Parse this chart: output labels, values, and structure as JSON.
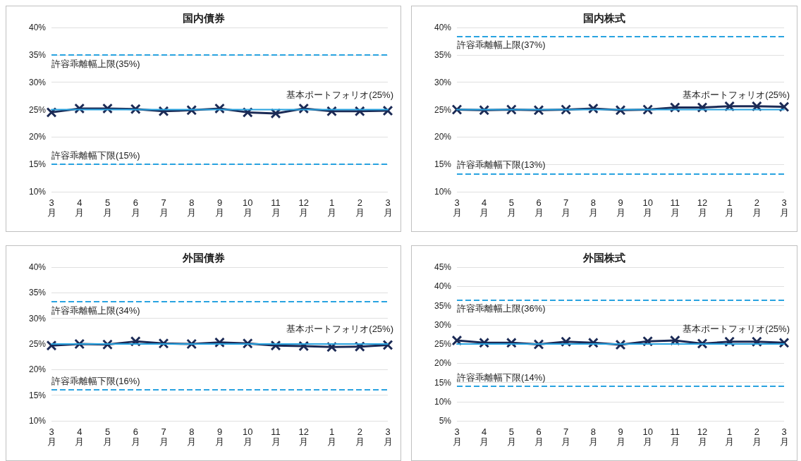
{
  "chart_data": [
    {
      "type": "line",
      "title": "国内債券",
      "categories": [
        "3月",
        "4月",
        "5月",
        "6月",
        "7月",
        "8月",
        "9月",
        "10月",
        "11月",
        "12月",
        "1月",
        "2月",
        "3月"
      ],
      "grid": "y",
      "ylim": [
        10,
        40
      ],
      "yticks": [
        {
          "value": 10,
          "label": "10%"
        },
        {
          "value": 15,
          "label": "15%"
        },
        {
          "value": 20,
          "label": "20%"
        },
        {
          "value": 25,
          "label": "25%"
        },
        {
          "value": 30,
          "label": "30%"
        },
        {
          "value": 35,
          "label": "35%"
        },
        {
          "value": 40,
          "label": "40%"
        }
      ],
      "series": [
        {
          "name": "基本ポートフォリオ(25%)",
          "color": "#29a3e0",
          "marker": "none",
          "values": [
            25,
            25,
            25,
            25,
            25,
            25,
            25,
            25,
            25,
            25,
            25,
            25,
            25
          ]
        },
        {
          "color": "#1b2a55",
          "marker": "cross",
          "values": [
            24.5,
            25.2,
            25.2,
            25.1,
            24.7,
            24.9,
            25.2,
            24.5,
            24.3,
            25.2,
            24.7,
            24.7,
            24.8
          ]
        }
      ],
      "ref_lines": [
        {
          "axis": "y",
          "value": 35,
          "label": "許容乖離幅上限(35%)",
          "color": "#29a3e0",
          "line_style": "dashed"
        },
        {
          "axis": "y",
          "value": 15,
          "label": "許容乖離幅下限(15%)",
          "color": "#29a3e0",
          "line_style": "dashed"
        }
      ]
    },
    {
      "type": "line",
      "title": "国内株式",
      "categories": [
        "3月",
        "4月",
        "5月",
        "6月",
        "7月",
        "8月",
        "9月",
        "10月",
        "11月",
        "12月",
        "1月",
        "2月",
        "3月"
      ],
      "grid": "y",
      "ylim": [
        10,
        40
      ],
      "yticks": [
        {
          "value": 10,
          "label": "10%"
        },
        {
          "value": 15,
          "label": "15%"
        },
        {
          "value": 20,
          "label": "20%"
        },
        {
          "value": 25,
          "label": "25%"
        },
        {
          "value": 30,
          "label": "30%"
        },
        {
          "value": 35,
          "label": "35%"
        },
        {
          "value": 40,
          "label": "40%"
        }
      ],
      "series": [
        {
          "name": "基本ポートフォリオ(25%)",
          "color": "#29a3e0",
          "marker": "none",
          "values": [
            25,
            25,
            25,
            25,
            25,
            25,
            25,
            25,
            25,
            25,
            25,
            25,
            25
          ]
        },
        {
          "color": "#1b2a55",
          "marker": "cross",
          "values": [
            25,
            24.9,
            25,
            24.9,
            25,
            25.2,
            24.9,
            25,
            25.4,
            25.4,
            25.6,
            25.6,
            25.5
          ]
        }
      ],
      "ref_lines": [
        {
          "axis": "y",
          "value": 38.4,
          "label": "許容乖離幅上限(37%)",
          "color": "#29a3e0",
          "line_style": "dashed"
        },
        {
          "axis": "y",
          "value": 13.3,
          "label": "許容乖離幅下限(13%)",
          "color": "#29a3e0",
          "line_style": "dashed"
        }
      ]
    },
    {
      "type": "line",
      "title": "外国債券",
      "categories": [
        "3月",
        "4月",
        "5月",
        "6月",
        "7月",
        "8月",
        "9月",
        "10月",
        "11月",
        "12月",
        "1月",
        "2月",
        "3月"
      ],
      "grid": "y",
      "ylim": [
        10,
        40
      ],
      "yticks": [
        {
          "value": 10,
          "label": "10%"
        },
        {
          "value": 15,
          "label": "15%"
        },
        {
          "value": 20,
          "label": "20%"
        },
        {
          "value": 25,
          "label": "25%"
        },
        {
          "value": 30,
          "label": "30%"
        },
        {
          "value": 35,
          "label": "35%"
        },
        {
          "value": 40,
          "label": "40%"
        }
      ],
      "series": [
        {
          "name": "基本ポートフォリオ(25%)",
          "color": "#29a3e0",
          "marker": "none",
          "values": [
            25,
            25,
            25,
            25,
            25,
            25,
            25,
            25,
            25,
            25,
            25,
            25,
            25
          ]
        },
        {
          "color": "#1b2a55",
          "marker": "cross",
          "values": [
            24.7,
            25,
            24.9,
            25.5,
            25.1,
            25,
            25.3,
            25.1,
            24.7,
            24.6,
            24.4,
            24.5,
            24.8
          ]
        }
      ],
      "ref_lines": [
        {
          "axis": "y",
          "value": 33.3,
          "label": "許容乖離幅上限(34%)",
          "color": "#29a3e0",
          "line_style": "dashed"
        },
        {
          "axis": "y",
          "value": 16.1,
          "label": "許容乖離幅下限(16%)",
          "color": "#29a3e0",
          "line_style": "dashed"
        }
      ]
    },
    {
      "type": "line",
      "title": "外国株式",
      "categories": [
        "3月",
        "4月",
        "5月",
        "6月",
        "7月",
        "8月",
        "9月",
        "10月",
        "11月",
        "12月",
        "1月",
        "2月",
        "3月"
      ],
      "grid": "y",
      "ylim": [
        5,
        45
      ],
      "yticks": [
        {
          "value": 5,
          "label": "5%"
        },
        {
          "value": 10,
          "label": "10%"
        },
        {
          "value": 15,
          "label": "15%"
        },
        {
          "value": 20,
          "label": "20%"
        },
        {
          "value": 25,
          "label": "25%"
        },
        {
          "value": 30,
          "label": "30%"
        },
        {
          "value": 35,
          "label": "35%"
        },
        {
          "value": 40,
          "label": "40%"
        },
        {
          "value": 45,
          "label": "45%"
        }
      ],
      "series": [
        {
          "name": "基本ポートフォリオ(25%)",
          "color": "#29a3e0",
          "marker": "none",
          "values": [
            25,
            25,
            25,
            25,
            25,
            25,
            25,
            25,
            25,
            25,
            25,
            25,
            25
          ]
        },
        {
          "color": "#1b2a55",
          "marker": "cross",
          "values": [
            25.9,
            25.3,
            25.3,
            24.9,
            25.6,
            25.3,
            24.8,
            25.7,
            25.9,
            25.1,
            25.6,
            25.6,
            25.3
          ]
        }
      ],
      "ref_lines": [
        {
          "axis": "y",
          "value": 36.5,
          "label": "許容乖離幅上限(36%)",
          "color": "#29a3e0",
          "line_style": "dashed"
        },
        {
          "axis": "y",
          "value": 14,
          "label": "許容乖離幅下限(14%)",
          "color": "#29a3e0",
          "line_style": "dashed"
        }
      ]
    }
  ]
}
